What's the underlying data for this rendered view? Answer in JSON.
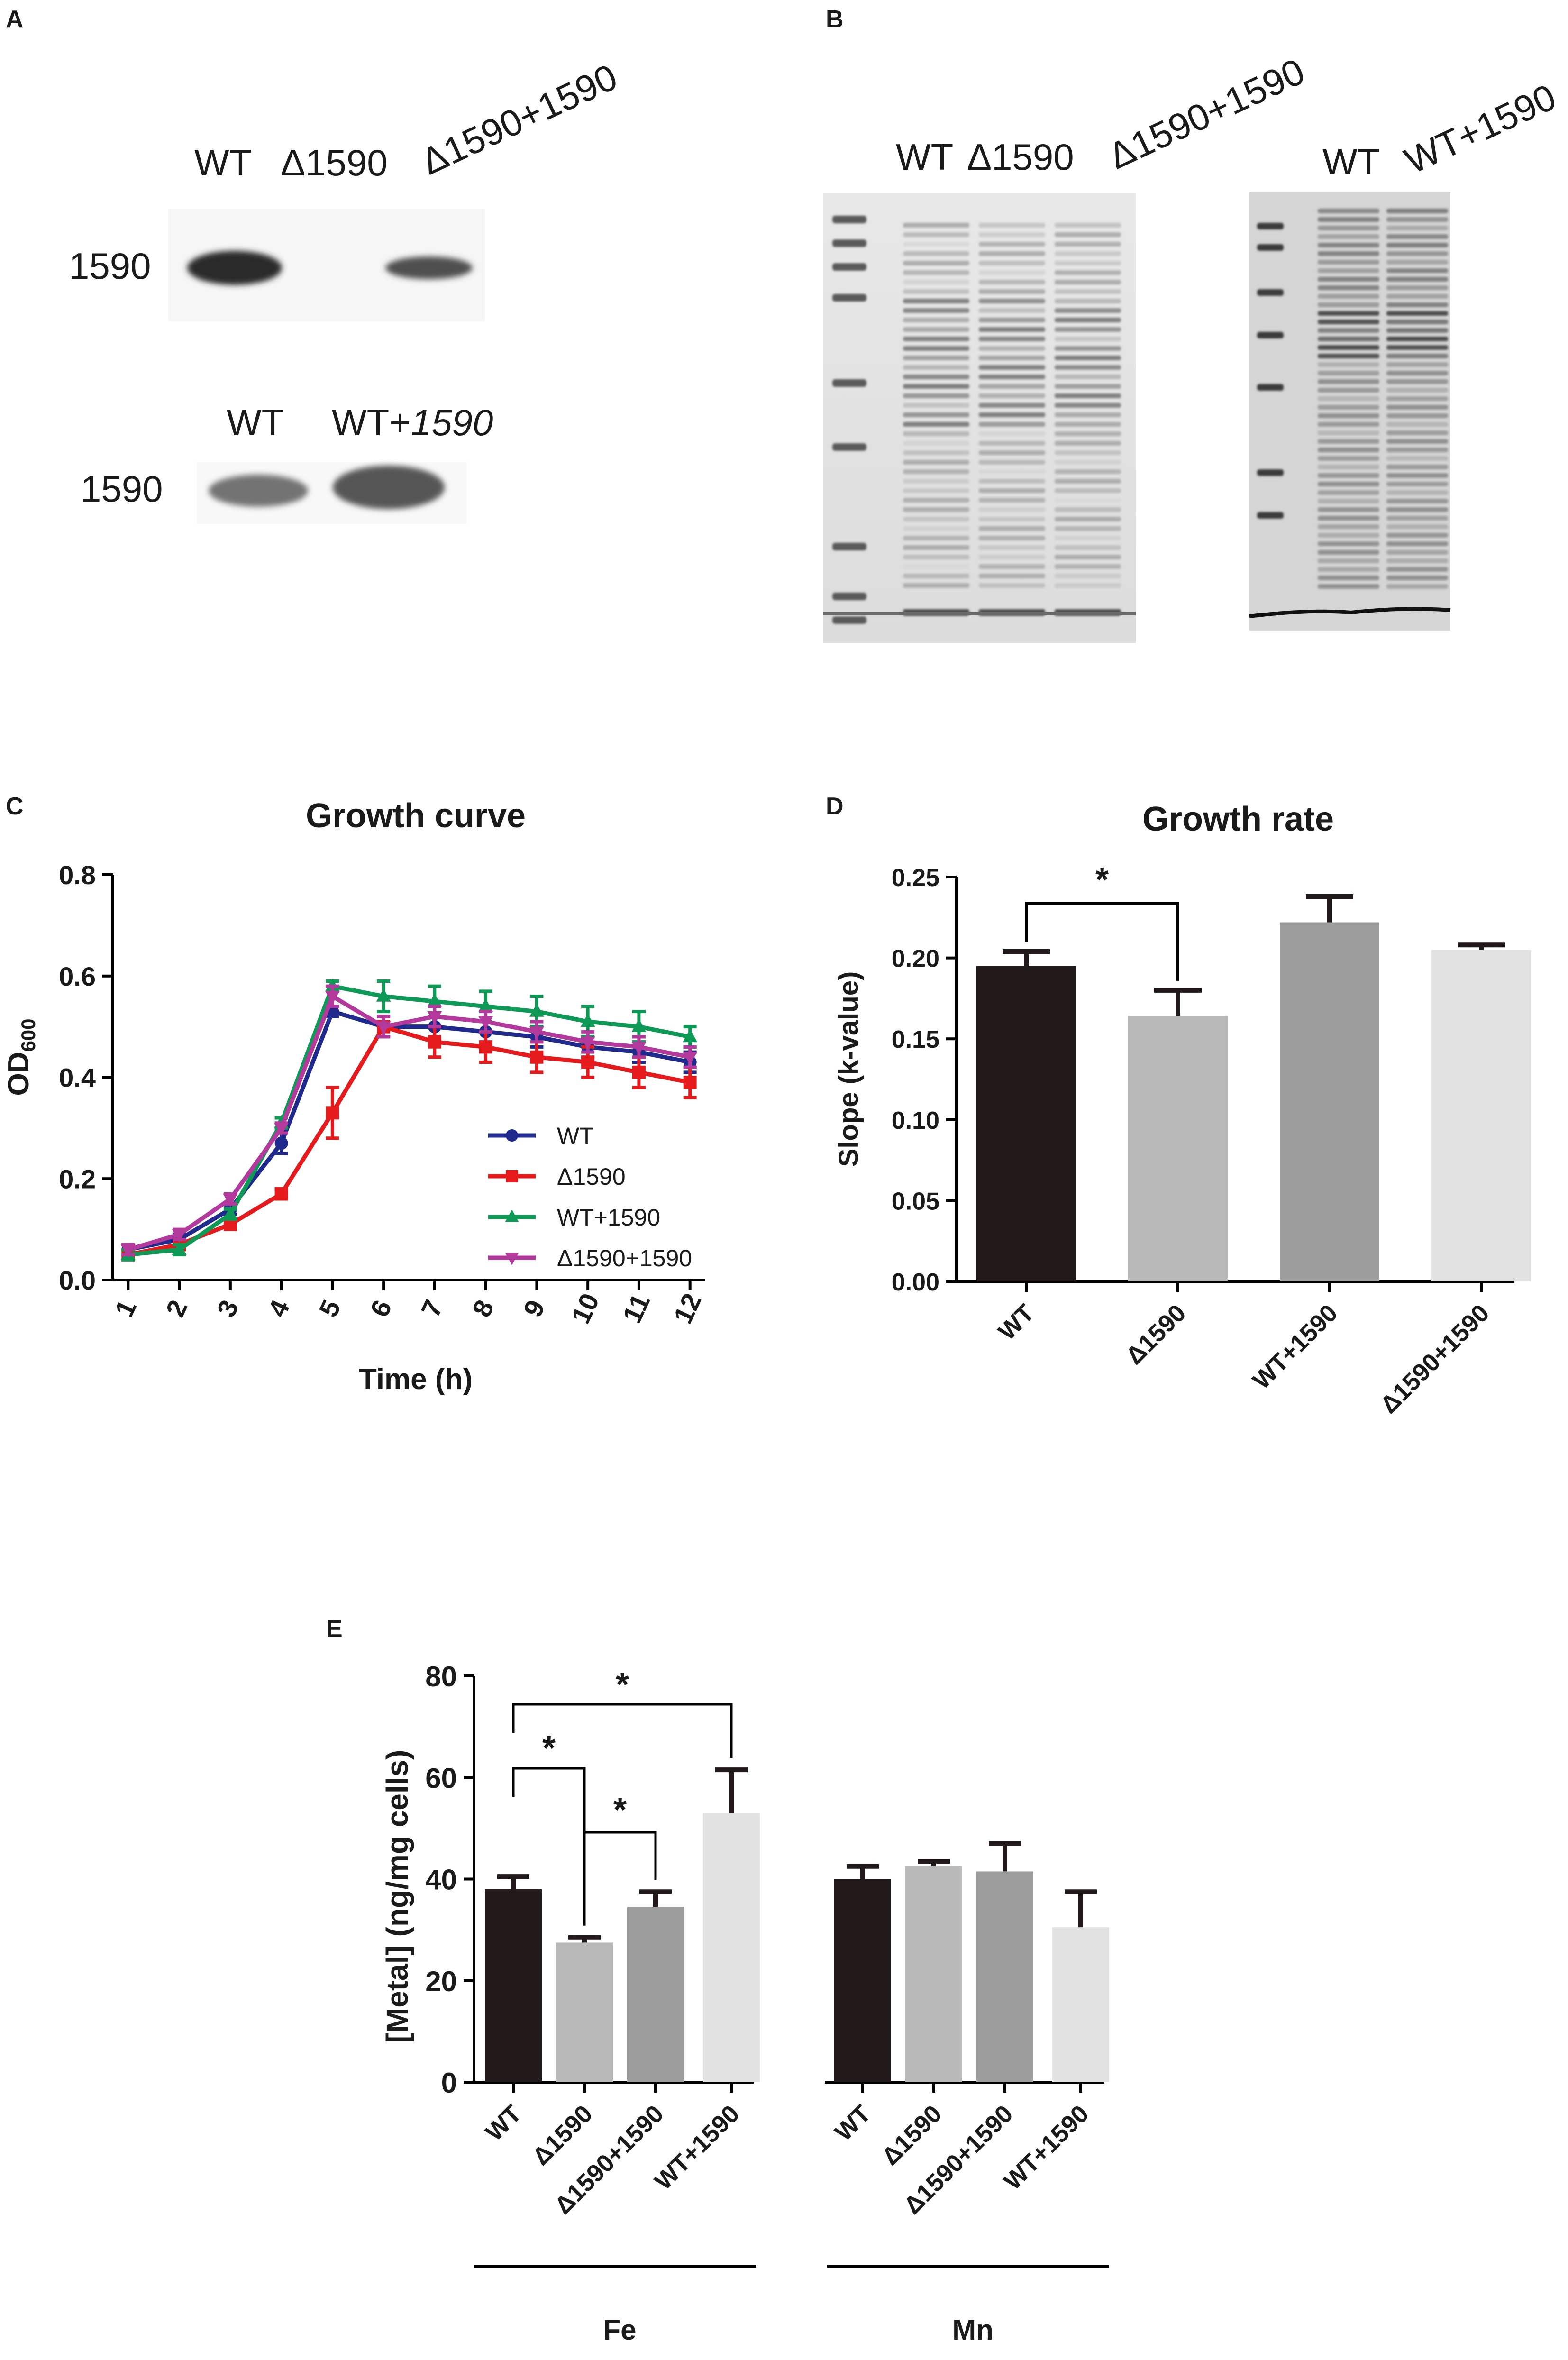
{
  "panel_labels": {
    "a": "A",
    "b": "B",
    "c": "C",
    "d": "D",
    "e": "E"
  },
  "panel_a": {
    "top_lanes": [
      "WT",
      "Δ1590",
      "Δ1590+1590"
    ],
    "top_band": "1590",
    "bottom_lanes": [
      "WT",
      "WT+1590"
    ],
    "bottom_band": "1590"
  },
  "panel_b": {
    "gel1_lanes": [
      "WT",
      "Δ1590",
      "Δ1590+1590"
    ],
    "gel2_lanes": [
      "WT",
      "WT+1590"
    ]
  },
  "colors": {
    "wt": "#1f2a8c",
    "d1590": "#e41a1c",
    "wt1590": "#0e9a56",
    "d1590c": "#b3399c",
    "bar_black": "#221a1a",
    "bar_light": "#b9b9b9",
    "bar_mid": "#9c9c9c",
    "bar_pale": "#e2e2e2"
  },
  "chart_data": [
    {
      "id": "C",
      "type": "line",
      "title": "Growth curve",
      "xlabel": "Time (h)",
      "ylabel_main": "OD",
      "ylabel_sub": "600",
      "x": [
        1,
        2,
        3,
        4,
        5,
        6,
        7,
        8,
        9,
        10,
        11,
        12
      ],
      "xlim": [
        0.7,
        12.3
      ],
      "ylim": [
        0,
        0.8
      ],
      "yticks": [
        "0.0",
        "0.2",
        "0.4",
        "0.6",
        "0.8"
      ],
      "xticks": [
        "1",
        "2",
        "3",
        "4",
        "5",
        "6",
        "7",
        "8",
        "9",
        "10",
        "11",
        "12"
      ],
      "series": [
        {
          "name": "WT",
          "color": "#1f2a8c",
          "marker": "circle",
          "values": [
            0.06,
            0.08,
            0.14,
            0.27,
            0.53,
            0.5,
            0.5,
            0.49,
            0.48,
            0.46,
            0.45,
            0.43
          ],
          "err": [
            0.01,
            0.01,
            0.01,
            0.02,
            0.01,
            0.02,
            0.02,
            0.02,
            0.02,
            0.02,
            0.02,
            0.02
          ]
        },
        {
          "name": "Δ1590",
          "color": "#e41a1c",
          "marker": "square",
          "values": [
            0.05,
            0.07,
            0.11,
            0.17,
            0.33,
            0.5,
            0.47,
            0.46,
            0.44,
            0.43,
            0.41,
            0.39
          ],
          "err": [
            0.01,
            0.01,
            0.01,
            0.01,
            0.05,
            0.02,
            0.03,
            0.03,
            0.03,
            0.03,
            0.03,
            0.03
          ]
        },
        {
          "name": "WT+1590",
          "color": "#0e9a56",
          "marker": "triangle",
          "values": [
            0.05,
            0.06,
            0.13,
            0.31,
            0.58,
            0.56,
            0.55,
            0.54,
            0.53,
            0.51,
            0.5,
            0.48
          ],
          "err": [
            0.01,
            0.01,
            0.01,
            0.01,
            0.01,
            0.03,
            0.03,
            0.03,
            0.03,
            0.03,
            0.03,
            0.02
          ]
        },
        {
          "name": "Δ1590+1590",
          "color": "#b3399c",
          "marker": "triangle-down",
          "values": [
            0.06,
            0.09,
            0.16,
            0.3,
            0.56,
            0.5,
            0.52,
            0.51,
            0.49,
            0.47,
            0.46,
            0.44
          ],
          "err": [
            0.01,
            0.01,
            0.01,
            0.01,
            0.02,
            0.02,
            0.02,
            0.02,
            0.02,
            0.02,
            0.02,
            0.02
          ]
        }
      ],
      "legend": "right-middle"
    },
    {
      "id": "D",
      "type": "bar",
      "title": "Growth rate",
      "ylabel": "Slope (k-value)",
      "categories": [
        "WT",
        "Δ1590",
        "WT+1590",
        "Δ1590+1590"
      ],
      "values": [
        0.195,
        0.164,
        0.222,
        0.205
      ],
      "err": [
        0.009,
        0.016,
        0.016,
        0.003
      ],
      "colors": [
        "#221a1a",
        "#b9b9b9",
        "#9c9c9c",
        "#e2e2e2"
      ],
      "ylim": [
        0,
        0.25
      ],
      "yticks": [
        "0.00",
        "0.05",
        "0.10",
        "0.15",
        "0.20",
        "0.25"
      ],
      "significance": [
        {
          "from": 0,
          "to": 1,
          "label": "*"
        }
      ]
    },
    {
      "id": "E",
      "type": "bar",
      "ylabel": "[Metal] (ng/mg cells)",
      "ylim": [
        0,
        80
      ],
      "yticks": [
        "0",
        "20",
        "40",
        "60",
        "80"
      ],
      "groups": [
        {
          "name": "Fe",
          "categories": [
            "WT",
            "Δ1590",
            "Δ1590+1590",
            "WT+1590"
          ],
          "values": [
            38,
            27.5,
            34.5,
            53
          ],
          "err": [
            2.5,
            1,
            3,
            8.5
          ]
        },
        {
          "name": "Mn",
          "categories": [
            "WT",
            "Δ1590",
            "Δ1590+1590",
            "WT+1590"
          ],
          "values": [
            40,
            42.5,
            41.5,
            30.5
          ],
          "err": [
            2.5,
            1,
            5.5,
            7
          ]
        }
      ],
      "colors": [
        "#221a1a",
        "#b9b9b9",
        "#9c9c9c",
        "#e2e2e2"
      ],
      "significance": [
        {
          "group": 0,
          "from": 0,
          "to": 3,
          "label": "*"
        },
        {
          "group": 0,
          "from": 0,
          "to": 1,
          "label": "*"
        },
        {
          "group": 0,
          "from": 1,
          "to": 2,
          "label": "*"
        }
      ]
    }
  ]
}
